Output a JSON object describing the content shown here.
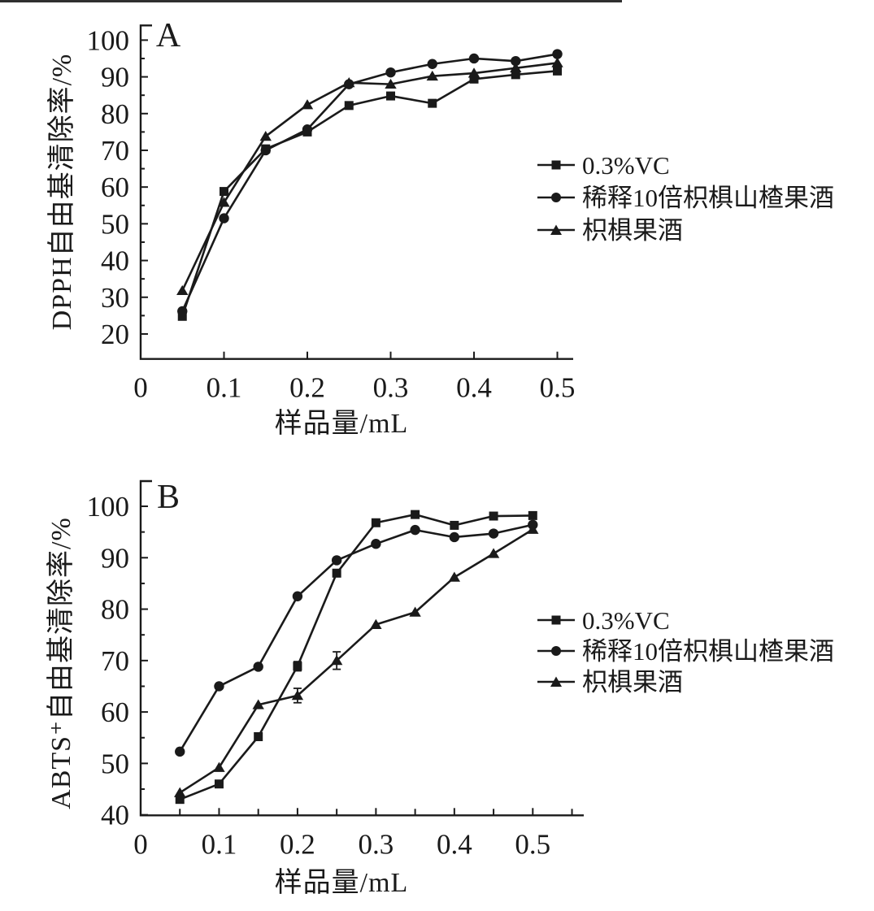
{
  "figure": {
    "type": "two-panel scientific line figure",
    "background": "#ffffff",
    "ink_color": "#1a1a1a"
  },
  "legend": {
    "position": "right-center",
    "entries": [
      {
        "label": "0.3%VC",
        "marker": "square"
      },
      {
        "label": "稀释10倍枳椇山楂果酒",
        "marker": "circle"
      },
      {
        "label": "枳椇果酒",
        "marker": "triangle"
      }
    ]
  },
  "chart_data": [
    {
      "type": "line",
      "panel_label": "A",
      "title": "",
      "xlabel": "样品量/mL",
      "ylabel": "DPPH自由基清除率/%",
      "x": [
        0.05,
        0.1,
        0.15,
        0.2,
        0.25,
        0.3,
        0.35,
        0.4,
        0.45,
        0.5
      ],
      "series": [
        {
          "name": "0.3%VC",
          "marker": "square",
          "values": [
            24.8,
            58.8,
            70.4,
            75.0,
            82.2,
            84.8,
            82.8,
            89.4,
            90.6,
            91.6
          ]
        },
        {
          "name": "稀释10倍枳椇山楂果酒",
          "marker": "circle",
          "values": [
            26.2,
            51.5,
            70.0,
            75.7,
            88.0,
            91.2,
            93.5,
            95.0,
            94.3,
            96.2
          ]
        },
        {
          "name": "枳椇果酒",
          "marker": "triangle",
          "values": [
            31.8,
            55.8,
            73.8,
            82.4,
            88.4,
            88.0,
            90.2,
            91.0,
            92.4,
            93.8
          ]
        }
      ],
      "x_ticks": [
        0,
        0.1,
        0.2,
        0.3,
        0.4,
        0.5
      ],
      "y_ticks": [
        20,
        30,
        40,
        50,
        60,
        70,
        80,
        90,
        100
      ],
      "x_minor_ticks": [],
      "y_minor_ticks": [
        25,
        35,
        45,
        55,
        65,
        75,
        85,
        95
      ],
      "xlim": [
        0,
        0.519
      ],
      "ylim": [
        13.2,
        104
      ],
      "grid": false,
      "legend_position": "right-center"
    },
    {
      "type": "line",
      "panel_label": "B",
      "title": "",
      "xlabel": "样品量/mL",
      "ylabel": "ABTS⁺自由基清除率/%",
      "x": [
        0.05,
        0.1,
        0.15,
        0.2,
        0.25,
        0.3,
        0.35,
        0.4,
        0.45,
        0.5
      ],
      "series": [
        {
          "name": "0.3%VC",
          "marker": "square",
          "values": [
            43.0,
            46.0,
            55.2,
            68.9,
            87.0,
            96.8,
            98.4,
            96.3,
            98.1,
            98.2
          ],
          "errors": [
            0,
            0,
            0,
            0.9,
            0,
            0,
            0,
            0,
            0,
            0
          ]
        },
        {
          "name": "稀释10倍枳椇山楂果酒",
          "marker": "circle",
          "values": [
            52.3,
            65.0,
            68.8,
            82.5,
            89.5,
            92.7,
            95.4,
            94.0,
            94.7,
            96.4
          ]
        },
        {
          "name": "枳椇果酒",
          "marker": "triangle",
          "values": [
            44.3,
            49.2,
            61.4,
            63.2,
            70.0,
            77.0,
            79.4,
            86.2,
            90.8,
            95.5
          ],
          "errors": [
            0,
            0,
            0,
            1.4,
            1.7,
            0,
            0,
            0,
            0,
            0
          ]
        }
      ],
      "x_ticks": [
        0,
        0.1,
        0.2,
        0.3,
        0.4,
        0.5
      ],
      "y_ticks": [
        40,
        50,
        60,
        70,
        80,
        90,
        100
      ],
      "x_minor_ticks": [
        0.05,
        0.15,
        0.25,
        0.35,
        0.45,
        0.55
      ],
      "y_minor_ticks": [
        45,
        55,
        65,
        75,
        85,
        95
      ],
      "xlim": [
        0,
        0.565
      ],
      "ylim": [
        39.9,
        104.9
      ],
      "grid": false,
      "legend_position": "right-center"
    }
  ]
}
